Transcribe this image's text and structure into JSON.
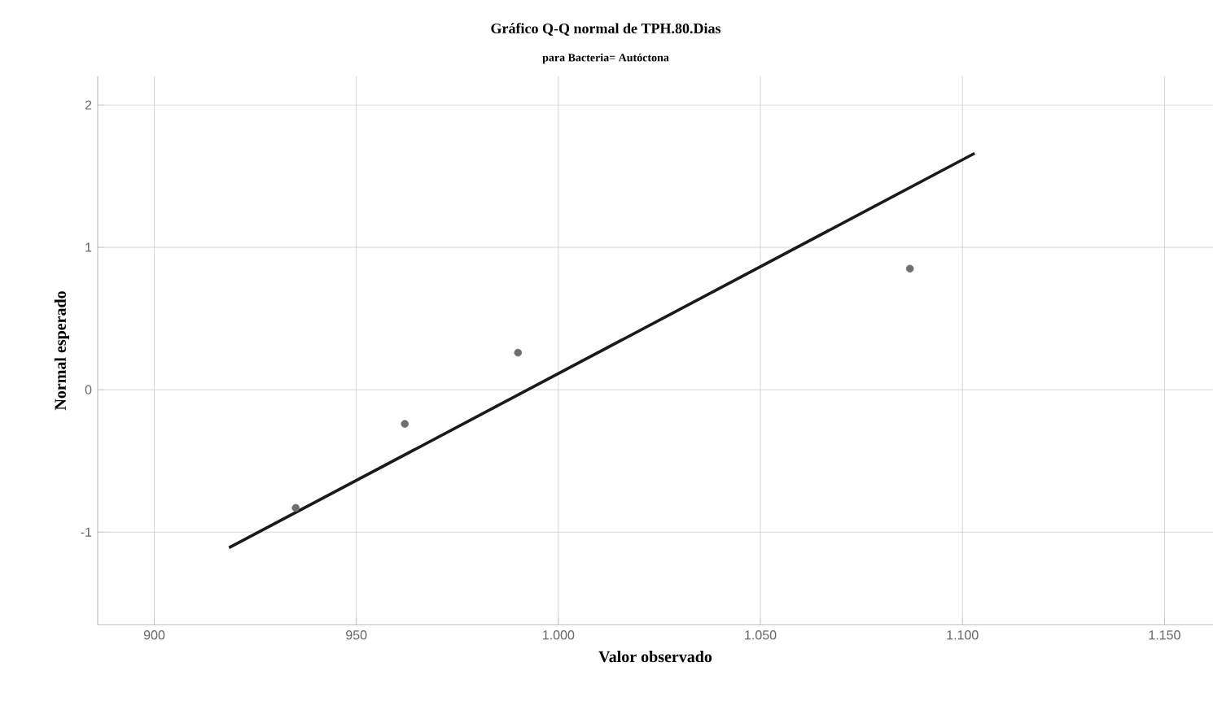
{
  "chart_data": {
    "type": "scatter",
    "title": "Gráfico Q-Q normal de TPH.80.Dias",
    "subtitle": "para Bacteria= Autóctona",
    "xlabel": "Valor observado",
    "ylabel": "Normal esperado",
    "xlim": [
      886,
      1162
    ],
    "ylim": [
      -1.65,
      2.2
    ],
    "xticks": [
      {
        "value": 900,
        "label": "900"
      },
      {
        "value": 950,
        "label": "950"
      },
      {
        "value": 1000,
        "label": "1.000"
      },
      {
        "value": 1050,
        "label": "1.050"
      },
      {
        "value": 1100,
        "label": "1.100"
      },
      {
        "value": 1150,
        "label": "1.150"
      }
    ],
    "yticks": [
      -1,
      0,
      1,
      2
    ],
    "grid": true,
    "series": [
      {
        "marker": "circle",
        "color": "#6e6e6e",
        "x": [
          935,
          962,
          990,
          1087
        ],
        "values": [
          -0.83,
          -0.24,
          0.26,
          0.85
        ]
      },
      {
        "type": "line",
        "color": "#1a1a1a",
        "x": [
          918.5,
          1103
        ],
        "values": [
          -1.11,
          1.66
        ],
        "marker": "none"
      }
    ]
  }
}
